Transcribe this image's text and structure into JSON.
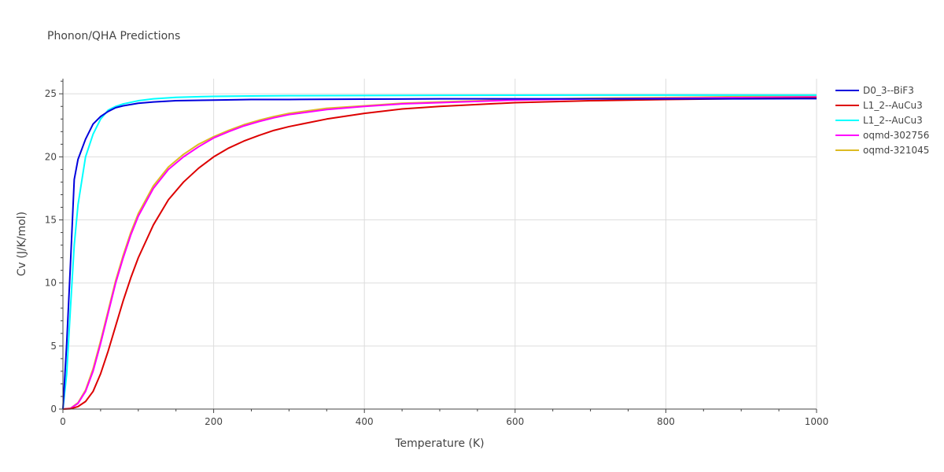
{
  "chart_data": {
    "type": "line",
    "title": "Phonon/QHA Predictions",
    "xlabel": "Temperature (K)",
    "ylabel": "Cv (J/K/mol)",
    "xlim": [
      0,
      1000
    ],
    "ylim": [
      0,
      26.2
    ],
    "x_ticks": [
      0,
      200,
      400,
      600,
      800,
      1000
    ],
    "y_ticks": [
      0,
      5,
      10,
      15,
      20,
      25
    ],
    "grid": true,
    "legend_position": "right",
    "series": [
      {
        "name": "D0_3--BiF3",
        "color": "#0000dd",
        "x": [
          0,
          5,
          10,
          15,
          20,
          30,
          40,
          50,
          60,
          70,
          80,
          100,
          120,
          150,
          200,
          250,
          300,
          400,
          500,
          600,
          700,
          800,
          900,
          1000
        ],
        "y": [
          0,
          5.2,
          11.5,
          18.2,
          19.8,
          21.4,
          22.6,
          23.2,
          23.6,
          23.9,
          24.05,
          24.25,
          24.35,
          24.45,
          24.5,
          24.55,
          24.55,
          24.58,
          24.6,
          24.6,
          24.6,
          24.6,
          24.6,
          24.62
        ]
      },
      {
        "name": "L1_2--AuCu3",
        "color": "#dd0000",
        "x": [
          0,
          10,
          20,
          30,
          40,
          50,
          60,
          70,
          80,
          90,
          100,
          120,
          140,
          160,
          180,
          200,
          220,
          240,
          260,
          280,
          300,
          350,
          400,
          450,
          500,
          600,
          700,
          800,
          900,
          1000
        ],
        "y": [
          0,
          0.02,
          0.2,
          0.6,
          1.4,
          2.8,
          4.6,
          6.6,
          8.6,
          10.4,
          12.0,
          14.6,
          16.6,
          18.0,
          19.1,
          20.0,
          20.7,
          21.25,
          21.7,
          22.1,
          22.4,
          23.0,
          23.45,
          23.8,
          24.0,
          24.3,
          24.45,
          24.55,
          24.62,
          24.68
        ]
      },
      {
        "name": "L1_2--AuCu3",
        "color": "#00ffff",
        "x": [
          0,
          5,
          10,
          15,
          20,
          30,
          40,
          50,
          60,
          70,
          80,
          100,
          120,
          150,
          200,
          250,
          300,
          400,
          500,
          600,
          700,
          800,
          900,
          1000
        ],
        "y": [
          0,
          2.8,
          8.0,
          13.0,
          16.2,
          20.0,
          21.8,
          23.0,
          23.7,
          24.0,
          24.2,
          24.45,
          24.6,
          24.72,
          24.8,
          24.83,
          24.85,
          24.87,
          24.88,
          24.89,
          24.9,
          24.9,
          24.9,
          24.9
        ]
      },
      {
        "name": "oqmd-302756",
        "color": "#ff00ff",
        "x": [
          0,
          10,
          20,
          30,
          40,
          50,
          60,
          70,
          80,
          90,
          100,
          120,
          140,
          160,
          180,
          200,
          220,
          240,
          260,
          280,
          300,
          350,
          400,
          450,
          500,
          600,
          700,
          800,
          900,
          1000
        ],
        "y": [
          0,
          0.05,
          0.45,
          1.4,
          3.0,
          5.2,
          7.6,
          10.0,
          12.0,
          13.8,
          15.3,
          17.5,
          19.0,
          20.0,
          20.8,
          21.5,
          22.0,
          22.45,
          22.8,
          23.1,
          23.35,
          23.75,
          24.0,
          24.2,
          24.3,
          24.5,
          24.6,
          24.65,
          24.7,
          24.75
        ]
      },
      {
        "name": "oqmd-321045",
        "color": "#ddbb22",
        "x": [
          0,
          10,
          20,
          30,
          40,
          50,
          60,
          70,
          80,
          90,
          100,
          120,
          140,
          160,
          180,
          200,
          220,
          240,
          260,
          280,
          300,
          350,
          400,
          450,
          500,
          600,
          700,
          800,
          900,
          1000
        ],
        "y": [
          0,
          0.06,
          0.5,
          1.5,
          3.2,
          5.4,
          7.8,
          10.2,
          12.2,
          14.0,
          15.5,
          17.7,
          19.2,
          20.2,
          21.0,
          21.6,
          22.1,
          22.55,
          22.9,
          23.2,
          23.45,
          23.85,
          24.05,
          24.25,
          24.35,
          24.55,
          24.65,
          24.7,
          24.78,
          24.85
        ]
      }
    ]
  }
}
